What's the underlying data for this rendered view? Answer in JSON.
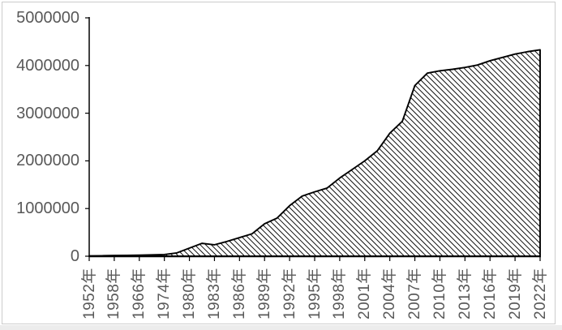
{
  "chart": {
    "title": "",
    "legend": "none",
    "background_color": "#ffffff",
    "frame_border_color": "#cccccc",
    "axis_color": "#000000",
    "tick_label_color": "#595959",
    "area_outline_color": "#000000",
    "area_fill_style": "light-downward-diagonal-hatch",
    "hatch_line_color": "#000000"
  },
  "chart_data": {
    "type": "area",
    "title": "",
    "xlabel": "",
    "ylabel": "",
    "grid": false,
    "legend_position": "none",
    "ylim": [
      0,
      5000000
    ],
    "y_ticks": [
      0,
      1000000,
      2000000,
      3000000,
      4000000,
      5000000
    ],
    "y_tick_labels": [
      "0",
      "1000000",
      "2000000",
      "3000000",
      "4000000",
      "5000000"
    ],
    "x_tick_labels": [
      "1952年",
      "1958年",
      "1966年",
      "1974年",
      "1980年",
      "1983年",
      "1986年",
      "1989年",
      "1992年",
      "1995年",
      "1998年",
      "2001年",
      "2004年",
      "2007年",
      "2010年",
      "2013年",
      "2016年",
      "2019年",
      "2022年"
    ],
    "x_tick_label_interval": 2,
    "x": [
      1952,
      1955,
      1958,
      1962,
      1966,
      1970,
      1974,
      1977,
      1980,
      1981,
      1983,
      1984,
      1986,
      1987,
      1989,
      1990,
      1992,
      1993,
      1995,
      1996,
      1998,
      1999,
      2001,
      2002,
      2004,
      2005,
      2007,
      2008,
      2010,
      2011,
      2013,
      2014,
      2016,
      2017,
      2019,
      2020,
      2022
    ],
    "values": [
      8000,
      10000,
      15000,
      18000,
      22000,
      28000,
      35000,
      70000,
      170000,
      270000,
      240000,
      310000,
      390000,
      470000,
      680000,
      800000,
      1060000,
      1260000,
      1350000,
      1430000,
      1640000,
      1820000,
      2000000,
      2210000,
      2580000,
      2830000,
      3580000,
      3840000,
      3890000,
      3920000,
      3960000,
      4010000,
      4100000,
      4170000,
      4240000,
      4290000,
      4330000
    ],
    "series": [
      {
        "name": "",
        "values": [
          8000,
          10000,
          15000,
          18000,
          22000,
          28000,
          35000,
          70000,
          170000,
          270000,
          240000,
          310000,
          390000,
          470000,
          680000,
          800000,
          1060000,
          1260000,
          1350000,
          1430000,
          1640000,
          1820000,
          2000000,
          2210000,
          2580000,
          2830000,
          3580000,
          3840000,
          3890000,
          3920000,
          3960000,
          4010000,
          4100000,
          4170000,
          4240000,
          4290000,
          4330000
        ]
      }
    ]
  }
}
